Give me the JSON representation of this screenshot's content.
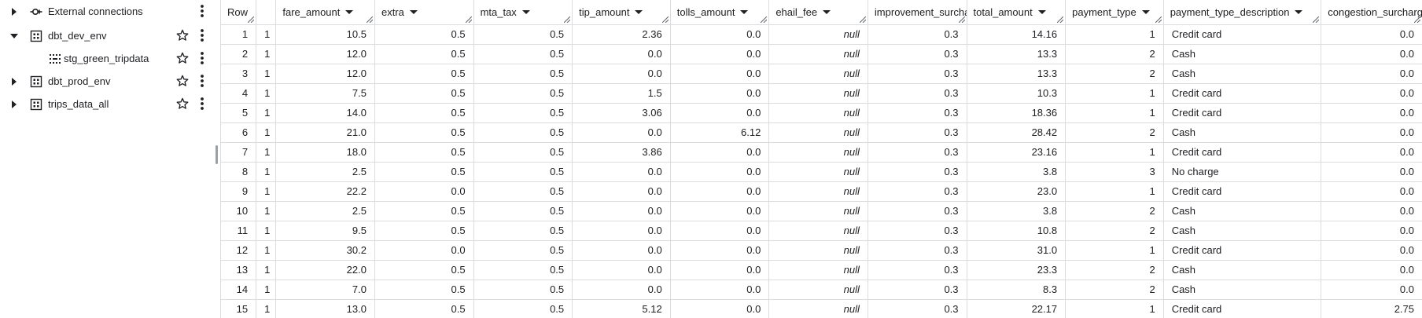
{
  "explorer": {
    "items": [
      {
        "label": "External connections",
        "icon": "external-connection-icon",
        "caret": "collapsed",
        "star": false,
        "kebab": true
      },
      {
        "label": "dbt_dev_env",
        "icon": "dataset-icon",
        "caret": "expanded",
        "star": true,
        "kebab": true
      },
      {
        "label": "stg_green_tripdata",
        "icon": "view-icon",
        "caret": "none",
        "star": true,
        "kebab": true
      },
      {
        "label": "dbt_prod_env",
        "icon": "dataset-icon",
        "caret": "collapsed",
        "star": true,
        "kebab": true
      },
      {
        "label": "trips_data_all",
        "icon": "dataset-icon",
        "caret": "collapsed",
        "star": true,
        "kebab": true
      }
    ]
  },
  "grid": {
    "columns": [
      {
        "label": "Row",
        "sortable": false
      },
      {
        "label": "",
        "sortable": false
      },
      {
        "label": "fare_amount",
        "sortable": true
      },
      {
        "label": "extra",
        "sortable": true
      },
      {
        "label": "mta_tax",
        "sortable": true
      },
      {
        "label": "tip_amount",
        "sortable": true
      },
      {
        "label": "tolls_amount",
        "sortable": true
      },
      {
        "label": "ehail_fee",
        "sortable": true
      },
      {
        "label": "improvement_surcharge",
        "sortable": false
      },
      {
        "label": "total_amount",
        "sortable": true
      },
      {
        "label": "payment_type",
        "sortable": true
      },
      {
        "label": "payment_type_description",
        "sortable": true
      },
      {
        "label": "congestion_surcharge",
        "sortable": false
      }
    ],
    "rows": [
      [
        "1",
        "1",
        "10.5",
        "0.5",
        "0.5",
        "2.36",
        "0.0",
        "null",
        "0.3",
        "14.16",
        "1",
        "Credit card",
        "0.0"
      ],
      [
        "2",
        "1",
        "12.0",
        "0.5",
        "0.5",
        "0.0",
        "0.0",
        "null",
        "0.3",
        "13.3",
        "2",
        "Cash",
        "0.0"
      ],
      [
        "3",
        "1",
        "12.0",
        "0.5",
        "0.5",
        "0.0",
        "0.0",
        "null",
        "0.3",
        "13.3",
        "2",
        "Cash",
        "0.0"
      ],
      [
        "4",
        "1",
        "7.5",
        "0.5",
        "0.5",
        "1.5",
        "0.0",
        "null",
        "0.3",
        "10.3",
        "1",
        "Credit card",
        "0.0"
      ],
      [
        "5",
        "1",
        "14.0",
        "0.5",
        "0.5",
        "3.06",
        "0.0",
        "null",
        "0.3",
        "18.36",
        "1",
        "Credit card",
        "0.0"
      ],
      [
        "6",
        "1",
        "21.0",
        "0.5",
        "0.5",
        "0.0",
        "6.12",
        "null",
        "0.3",
        "28.42",
        "2",
        "Cash",
        "0.0"
      ],
      [
        "7",
        "1",
        "18.0",
        "0.5",
        "0.5",
        "3.86",
        "0.0",
        "null",
        "0.3",
        "23.16",
        "1",
        "Credit card",
        "0.0"
      ],
      [
        "8",
        "1",
        "2.5",
        "0.5",
        "0.5",
        "0.0",
        "0.0",
        "null",
        "0.3",
        "3.8",
        "3",
        "No charge",
        "0.0"
      ],
      [
        "9",
        "1",
        "22.2",
        "0.0",
        "0.5",
        "0.0",
        "0.0",
        "null",
        "0.3",
        "23.0",
        "1",
        "Credit card",
        "0.0"
      ],
      [
        "10",
        "1",
        "2.5",
        "0.5",
        "0.5",
        "0.0",
        "0.0",
        "null",
        "0.3",
        "3.8",
        "2",
        "Cash",
        "0.0"
      ],
      [
        "11",
        "1",
        "9.5",
        "0.5",
        "0.5",
        "0.0",
        "0.0",
        "null",
        "0.3",
        "10.8",
        "2",
        "Cash",
        "0.0"
      ],
      [
        "12",
        "1",
        "30.2",
        "0.0",
        "0.5",
        "0.0",
        "0.0",
        "null",
        "0.3",
        "31.0",
        "1",
        "Credit card",
        "0.0"
      ],
      [
        "13",
        "1",
        "22.0",
        "0.5",
        "0.5",
        "0.0",
        "0.0",
        "null",
        "0.3",
        "23.3",
        "2",
        "Cash",
        "0.0"
      ],
      [
        "14",
        "1",
        "7.0",
        "0.5",
        "0.5",
        "0.0",
        "0.0",
        "null",
        "0.3",
        "8.3",
        "2",
        "Cash",
        "0.0"
      ],
      [
        "15",
        "1",
        "13.0",
        "0.5",
        "0.5",
        "5.12",
        "0.0",
        "null",
        "0.3",
        "22.17",
        "1",
        "Credit card",
        "2.75"
      ]
    ]
  },
  "colors": {
    "border": "#dadce0",
    "text": "#202124",
    "null_text": "#80868b",
    "icon": "#202124"
  }
}
